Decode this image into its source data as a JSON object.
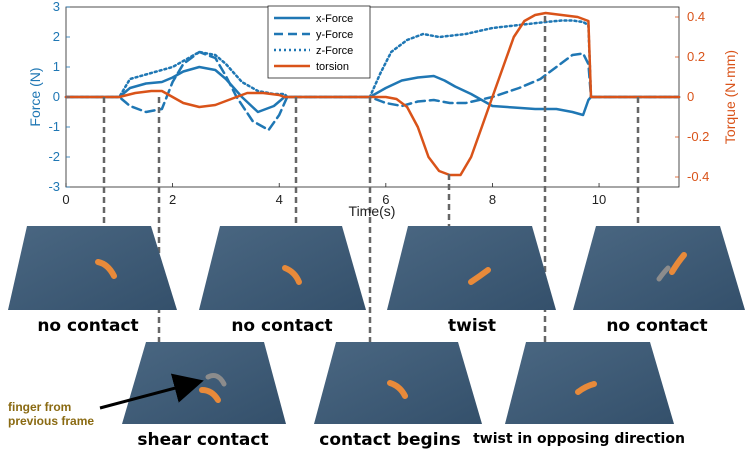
{
  "chart_data": {
    "type": "line",
    "xlabel": "Time(s)",
    "ylabel_left": "Force (N)",
    "ylabel_right": "Torque (N·mm)",
    "xlim": [
      0,
      11.5
    ],
    "ylim_left": [
      -3,
      3
    ],
    "ylim_right": [
      -0.45,
      0.45
    ],
    "x_ticks": [
      "0",
      "2",
      "4",
      "6",
      "8",
      "10"
    ],
    "y_ticks_left": [
      "3",
      "2",
      "1",
      "0",
      "-1",
      "-2",
      "-3"
    ],
    "y_ticks_right": [
      "0.4",
      "0.2",
      "0",
      "-0.2",
      "-0.4"
    ],
    "legend_position": "top-center",
    "colors": {
      "force": "#1f77b4",
      "torsion": "#d95319"
    },
    "series": [
      {
        "name": "x-Force",
        "axis": "left",
        "style": "solid",
        "x": [
          0,
          1.0,
          1.2,
          1.5,
          1.8,
          2.0,
          2.2,
          2.5,
          2.8,
          3.0,
          3.3,
          3.6,
          3.9,
          4.1,
          4.15,
          5.7,
          6.0,
          6.3,
          6.6,
          6.9,
          7.1,
          7.3,
          7.6,
          8.0,
          8.4,
          8.8,
          9.2,
          9.5,
          9.7,
          9.8,
          9.85,
          11.5
        ],
        "y": [
          0,
          0,
          0.3,
          0.45,
          0.5,
          0.65,
          0.85,
          1.0,
          0.9,
          0.6,
          0.0,
          -0.5,
          -0.3,
          0.0,
          0,
          0,
          0.3,
          0.55,
          0.65,
          0.7,
          0.55,
          0.35,
          0.1,
          -0.3,
          -0.35,
          -0.4,
          -0.4,
          -0.5,
          -0.6,
          -0.1,
          0,
          0
        ]
      },
      {
        "name": "y-Force",
        "axis": "left",
        "style": "dashed",
        "x": [
          0,
          1.0,
          1.2,
          1.5,
          1.8,
          2.0,
          2.2,
          2.5,
          2.8,
          3.0,
          3.2,
          3.5,
          3.8,
          4.0,
          4.15,
          5.7,
          6.0,
          6.3,
          6.6,
          6.9,
          7.2,
          7.5,
          8.0,
          8.5,
          8.9,
          9.2,
          9.5,
          9.7,
          9.8,
          9.85,
          11.5
        ],
        "y": [
          0,
          0,
          -0.3,
          -0.5,
          -0.4,
          0.5,
          1.1,
          1.5,
          1.3,
          0.7,
          0.0,
          -0.8,
          -1.1,
          -0.6,
          0,
          0,
          -0.2,
          -0.3,
          -0.15,
          -0.1,
          -0.2,
          -0.2,
          0.0,
          0.3,
          0.6,
          1.0,
          1.4,
          1.45,
          1.1,
          0,
          0
        ]
      },
      {
        "name": "z-Force",
        "axis": "left",
        "style": "dotted",
        "x": [
          0,
          1.0,
          1.2,
          1.5,
          1.8,
          2.0,
          2.2,
          2.5,
          2.8,
          3.0,
          3.3,
          3.6,
          3.9,
          4.1,
          4.15,
          5.7,
          5.9,
          6.1,
          6.4,
          6.7,
          7.0,
          7.5,
          8.0,
          8.5,
          9.0,
          9.3,
          9.5,
          9.7,
          9.8,
          9.85,
          11.5
        ],
        "y": [
          0,
          0,
          0.6,
          0.75,
          0.9,
          1.0,
          1.2,
          1.5,
          1.4,
          1.1,
          0.5,
          0.2,
          0.1,
          0.1,
          0,
          0,
          0.8,
          1.5,
          1.9,
          2.1,
          2.0,
          2.1,
          2.3,
          2.4,
          2.5,
          2.55,
          2.55,
          2.5,
          2.4,
          0,
          0
        ]
      },
      {
        "name": "torsion",
        "axis": "right",
        "style": "solid",
        "x": [
          0,
          1.0,
          1.3,
          1.6,
          1.8,
          2.0,
          2.2,
          2.5,
          2.8,
          3.1,
          3.4,
          3.7,
          4.0,
          4.1,
          4.15,
          5.7,
          6.0,
          6.2,
          6.4,
          6.6,
          6.8,
          7.0,
          7.2,
          7.4,
          7.6,
          7.8,
          8.0,
          8.2,
          8.4,
          8.6,
          8.8,
          9.0,
          9.3,
          9.6,
          9.8,
          9.85,
          11.5
        ],
        "y": [
          0,
          0,
          0.02,
          0.03,
          0.03,
          0.0,
          -0.03,
          -0.05,
          -0.04,
          -0.01,
          0.02,
          0.02,
          0.01,
          0.0,
          0,
          0,
          0.0,
          -0.01,
          -0.05,
          -0.15,
          -0.3,
          -0.37,
          -0.39,
          -0.39,
          -0.3,
          -0.15,
          0.0,
          0.15,
          0.3,
          0.38,
          0.41,
          0.42,
          0.41,
          0.4,
          0.38,
          0,
          0
        ]
      }
    ]
  },
  "captions": {
    "top1": "no contact",
    "top2": "no contact",
    "top3": "twist",
    "top4": "no contact",
    "bot1": "shear contact",
    "bot2": "contact begins",
    "bot3": "twist in opposing direction"
  },
  "annotation": {
    "line1": "finger from",
    "line2": "previous frame"
  }
}
